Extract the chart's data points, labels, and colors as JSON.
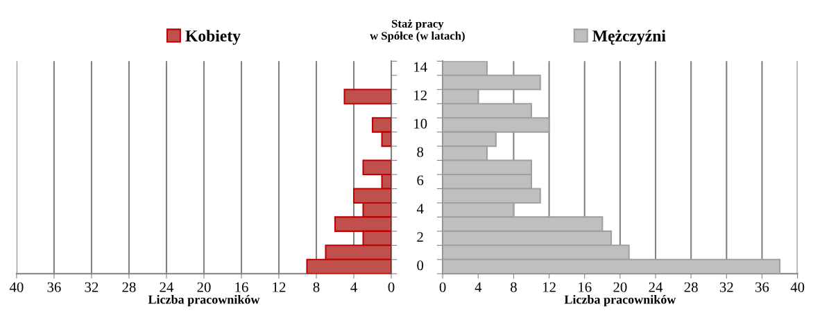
{
  "chart_data": [
    {
      "type": "bar",
      "orientation": "horizontal",
      "ylabel": "Staż pracy\nw Spółce (w latach)",
      "xlabel": "Liczba pracowników",
      "categories": [
        "14",
        null,
        "12",
        null,
        "10",
        null,
        "8",
        null,
        "6",
        null,
        "4",
        null,
        "2",
        null,
        "0"
      ],
      "series": [
        {
          "name": "Kobiety",
          "color": "#c0504d",
          "values": [
            0,
            0,
            5,
            0,
            2,
            1,
            0,
            3,
            1,
            4,
            3,
            6,
            3,
            7,
            9
          ]
        }
      ],
      "xlim": [
        40,
        0
      ],
      "xticks": [
        40,
        36,
        32,
        28,
        24,
        20,
        16,
        12,
        8,
        4,
        0
      ],
      "grid": "x",
      "legend": "top"
    },
    {
      "type": "bar",
      "orientation": "horizontal",
      "xlabel": "Liczba pracowników",
      "categories": [
        "14",
        null,
        "12",
        null,
        "10",
        null,
        "8",
        null,
        "6",
        null,
        "4",
        null,
        "2",
        null,
        "0"
      ],
      "series": [
        {
          "name": "Mężczyźni",
          "color": "#bfbfbf",
          "values": [
            5,
            11,
            4,
            10,
            12,
            6,
            5,
            10,
            10,
            11,
            8,
            18,
            19,
            21,
            38
          ]
        }
      ],
      "xlim": [
        0,
        40
      ],
      "xticks": [
        0,
        4,
        8,
        12,
        16,
        20,
        24,
        28,
        32,
        36,
        40
      ],
      "grid": "x",
      "legend": "top",
      "tick_labels": "x"
    }
  ]
}
